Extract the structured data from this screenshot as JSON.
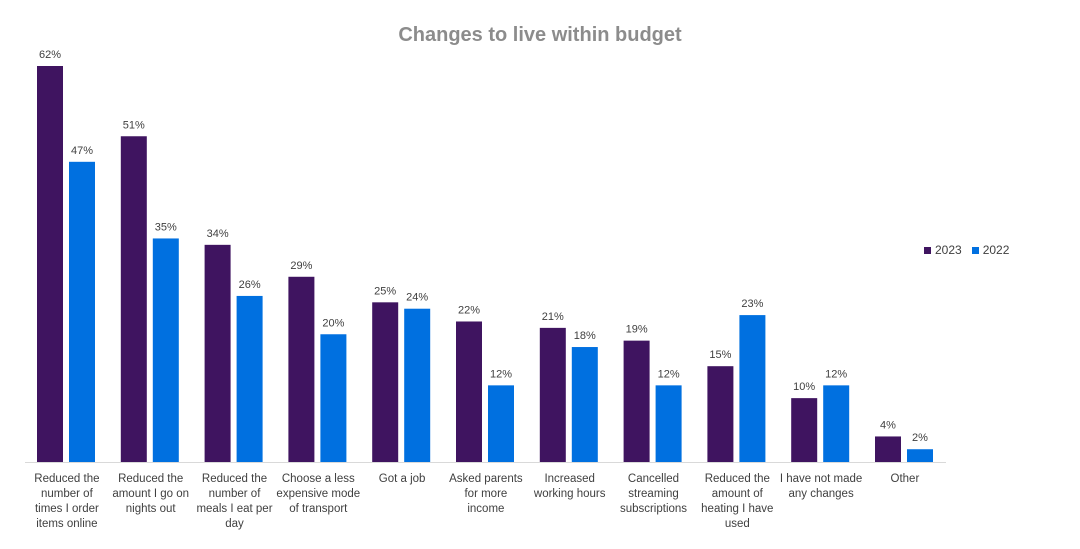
{
  "chart_data": {
    "type": "bar",
    "title": "Changes to live within budget",
    "categories": [
      [
        "Reduced the",
        "number of",
        "times I order",
        "items online"
      ],
      [
        "Reduced the",
        "amount I go on",
        "nights out"
      ],
      [
        "Reduced the",
        "number of",
        "meals I eat per",
        "day"
      ],
      [
        "Choose a less",
        "expensive mode",
        "of transport"
      ],
      [
        "Got a job"
      ],
      [
        "Asked parents",
        "for more",
        "income"
      ],
      [
        "Increased",
        "working hours"
      ],
      [
        "Cancelled",
        "streaming",
        "subscriptions"
      ],
      [
        "Reduced the",
        "amount of",
        "heating I have",
        "used"
      ],
      [
        "I have not made",
        "any changes"
      ],
      [
        "Other"
      ]
    ],
    "series": [
      {
        "name": "2023",
        "color": "#3f1460",
        "values": [
          62,
          51,
          34,
          29,
          25,
          22,
          21,
          19,
          15,
          10,
          4
        ]
      },
      {
        "name": "2022",
        "color": "#0070e0",
        "values": [
          47,
          35,
          26,
          20,
          24,
          12,
          18,
          12,
          23,
          12,
          2
        ]
      }
    ],
    "value_suffix": "%",
    "ylim": [
      0,
      62
    ],
    "legend_position": "right",
    "grid": false
  }
}
